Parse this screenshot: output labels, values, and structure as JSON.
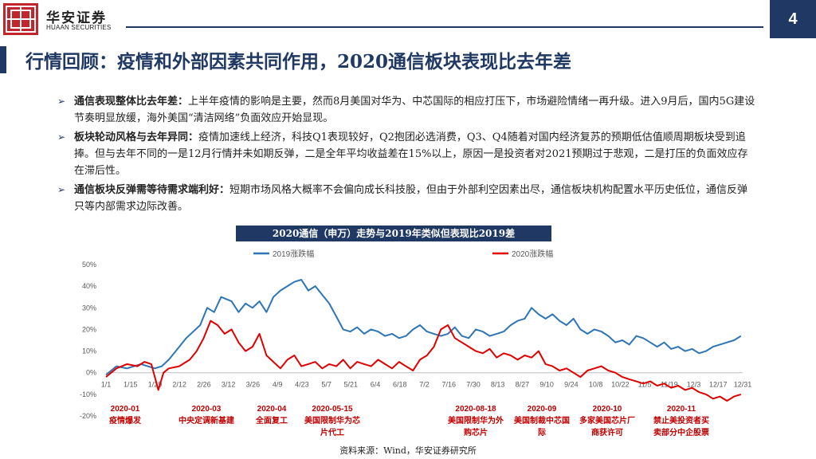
{
  "header": {
    "brand_cn": "华安证券",
    "brand_en": "HUAAN SECURITIES",
    "page_number": "4",
    "brand_color": "#c0262c",
    "accent_color": "#1f3864"
  },
  "title": "行情回顾：疫情和外部因素共同作用，2020通信板块表现比去年差",
  "bullets": [
    {
      "lead": "通信表现整体比去年差：",
      "text": "上半年疫情的影响是主要，然而8月美国对华为、中芯国际的相应打压下，市场避险情绪一再升级。进入9月后，国内5G建设节奏明显放缓，海外美国“清洁网络”负面效应开始显现。"
    },
    {
      "lead": "板块轮动风格与去年异同：",
      "text": "疫情加速线上经济，科技Q1表现较好，Q2抱团必选消费，Q3、Q4随着对国内经济复苏的预期低估值顺周期板块受到追捧。但与去年不同的一是12月行情并未如期反弹，二是全年平均收益差在15%以上，原因一是投资者对2021预期过于悲观，二是打压的负面效应存在滞后性。"
    },
    {
      "lead": "通信板块反弹需等待需求端利好：",
      "text": "短期市场风格大概率不会偏向成长科技股，但由于外部利空因素出尽，通信板块机构配置水平历史低位，通信反弹只等内部需求边际改善。"
    }
  ],
  "chart_title": "2020通信（申万）走势与2019年类似但表现比2019差",
  "source": "资料来源：Wind，华安证券研究所",
  "chart_data": {
    "type": "line",
    "title": "2020通信（申万）走势与2019年类似但表现比2019差",
    "x_tick_labels": [
      "1/1",
      "1/15",
      "1/29",
      "2/12",
      "2/26",
      "3/12",
      "3/26",
      "4/9",
      "4/23",
      "5/7",
      "5/21",
      "6/4",
      "6/18",
      "7/2",
      "7/16",
      "7/30",
      "8/13",
      "8/27",
      "9/10",
      "9/24",
      "10/8",
      "10/22",
      "11/5",
      "11/19",
      "12/3",
      "12/17",
      "12/31"
    ],
    "y_tick_labels": [
      "50%",
      "40%",
      "30%",
      "20%",
      "10%",
      "0%",
      "-10%",
      "-20%"
    ],
    "ylim": [
      -20,
      50
    ],
    "xlim_day_of_year": [
      0,
      365
    ],
    "legend_position": "top",
    "grid": false,
    "series": [
      {
        "name": "2019涨跌幅",
        "color": "#2e75b6",
        "x_day_of_year": [
          0,
          6,
          12,
          20,
          28,
          32,
          36,
          40,
          46,
          54,
          58,
          62,
          66,
          72,
          76,
          80,
          84,
          88,
          92,
          96,
          100,
          104,
          108,
          112,
          116,
          120,
          124,
          128,
          132,
          136,
          140,
          144,
          148,
          152,
          156,
          160,
          164,
          168,
          172,
          176,
          180,
          184,
          188,
          192,
          196,
          200,
          204,
          208,
          212,
          216,
          220,
          224,
          228,
          232,
          236,
          240,
          244,
          248,
          252,
          256,
          260,
          264,
          268,
          272,
          276,
          280,
          284,
          288,
          292,
          296,
          300,
          304,
          308,
          312,
          316,
          320,
          324,
          328,
          332,
          336,
          340,
          344,
          348,
          352,
          356,
          360,
          364
        ],
        "values": [
          -1,
          3,
          2,
          4,
          2,
          3,
          6,
          10,
          16,
          22,
          30,
          28,
          35,
          33,
          28,
          32,
          30,
          33,
          28,
          35,
          38,
          40,
          42,
          43,
          38,
          40,
          36,
          32,
          26,
          20,
          19,
          21,
          18,
          20,
          19,
          17,
          18,
          16,
          17,
          20,
          22,
          19,
          18,
          17,
          18,
          21,
          17,
          16,
          20,
          19,
          17,
          18,
          19,
          22,
          24,
          25,
          30,
          27,
          25,
          27,
          24,
          22,
          25,
          20,
          18,
          20,
          19,
          17,
          14,
          15,
          13,
          17,
          16,
          14,
          12,
          14,
          11,
          12,
          10,
          11,
          9,
          10,
          12,
          13,
          14,
          15,
          17
        ]
      },
      {
        "name": "2020涨跌幅",
        "color": "#e00000",
        "x_day_of_year": [
          0,
          6,
          12,
          18,
          22,
          26,
          30,
          33,
          36,
          42,
          48,
          52,
          56,
          60,
          64,
          68,
          72,
          76,
          80,
          84,
          88,
          92,
          96,
          100,
          104,
          108,
          112,
          116,
          120,
          124,
          128,
          132,
          136,
          140,
          144,
          148,
          152,
          156,
          160,
          164,
          168,
          172,
          176,
          180,
          184,
          188,
          192,
          196,
          200,
          204,
          208,
          212,
          216,
          220,
          224,
          228,
          232,
          236,
          240,
          244,
          248,
          252,
          256,
          260,
          264,
          268,
          272,
          276,
          280,
          284,
          288,
          292,
          296,
          300,
          304,
          308,
          312,
          316,
          320,
          324,
          328,
          332,
          336,
          340,
          344,
          348,
          352,
          356,
          360,
          364
        ],
        "values": [
          -2,
          2,
          4,
          3,
          5,
          4,
          -8,
          0,
          2,
          3,
          6,
          10,
          16,
          24,
          22,
          18,
          20,
          14,
          10,
          12,
          18,
          8,
          5,
          2,
          6,
          8,
          3,
          4,
          5,
          2,
          4,
          3,
          6,
          2,
          5,
          4,
          3,
          6,
          4,
          2,
          5,
          3,
          1,
          6,
          8,
          12,
          20,
          22,
          16,
          14,
          12,
          10,
          9,
          11,
          7,
          9,
          8,
          6,
          8,
          7,
          10,
          4,
          3,
          1,
          2,
          0,
          -2,
          1,
          2,
          3,
          1,
          0,
          -2,
          -3,
          -4,
          -5,
          -4,
          -6,
          -5,
          -7,
          -6,
          -8,
          -7,
          -9,
          -10,
          -12,
          -11,
          -13,
          -11,
          -10
        ]
      }
    ],
    "annotations": [
      {
        "date": "2020-01",
        "label": "疫情爆发"
      },
      {
        "date": "2020-03",
        "label": "中央定调新基建"
      },
      {
        "date": "2020-04",
        "label": "全面复工"
      },
      {
        "date": "2020-05-15",
        "label": "美国限制华为芯片代工"
      },
      {
        "date": "2020-08-18",
        "label": "美国限制华为外购芯片"
      },
      {
        "date": "2020-09",
        "label": "美国制裁中芯国际"
      },
      {
        "date": "2020-10",
        "label": "多家美国芯片厂商获许可"
      },
      {
        "date": "2020-11",
        "label": "禁止美投资者买卖部分中企股票"
      }
    ]
  }
}
